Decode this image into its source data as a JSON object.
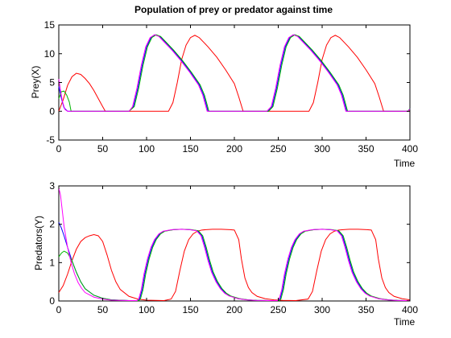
{
  "chart_data": [
    {
      "type": "line",
      "title": "Population of prey or predator against time",
      "xlabel": "Time",
      "ylabel": "Prey(X)",
      "xlim": [
        0,
        400
      ],
      "ylim": [
        -5,
        15
      ],
      "xticks": [
        0,
        50,
        100,
        150,
        200,
        250,
        300,
        350,
        400
      ],
      "yticks": [
        -5,
        0,
        5,
        10,
        15
      ],
      "grid": false,
      "series": [
        {
          "color": "#ff0000",
          "x": [
            0,
            5,
            10,
            15,
            20,
            25,
            30,
            35,
            40,
            45,
            50,
            53,
            60,
            100,
            125,
            130,
            135,
            140,
            145,
            150,
            155,
            160,
            170,
            180,
            190,
            200,
            205,
            210,
            220,
            270,
            285,
            290,
            295,
            300,
            305,
            310,
            315,
            320,
            330,
            340,
            350,
            360,
            365,
            370,
            400
          ],
          "y": [
            0,
            2,
            4.5,
            6,
            6.6,
            6.4,
            5.7,
            4.8,
            3.6,
            2.2,
            0.8,
            0,
            0,
            0,
            0,
            1.5,
            5,
            9,
            11.5,
            12.8,
            13.2,
            12.8,
            11.2,
            9.4,
            7.2,
            4.8,
            2.5,
            0,
            0,
            0,
            0,
            1.5,
            5,
            9,
            11.5,
            12.8,
            13.2,
            12.8,
            11.2,
            9.4,
            7.2,
            4.8,
            2.5,
            0,
            0
          ]
        },
        {
          "color": "#0000ff",
          "x": [
            0,
            3,
            6,
            10,
            30,
            80,
            85,
            90,
            95,
            100,
            105,
            110,
            115,
            120,
            130,
            140,
            150,
            160,
            165,
            170,
            238,
            243,
            248,
            253,
            258,
            263,
            268,
            273,
            278,
            288,
            298,
            308,
            318,
            323,
            328,
            398,
            400
          ],
          "y": [
            4.3,
            2.2,
            0.6,
            0,
            0,
            0,
            0.8,
            4,
            8,
            11.2,
            12.8,
            13.3,
            13,
            12.2,
            10.6,
            8.8,
            6.8,
            4.6,
            2.8,
            0,
            0,
            0.8,
            4,
            8,
            11.2,
            12.8,
            13.3,
            13,
            12.2,
            10.6,
            8.8,
            6.8,
            4.6,
            2.8,
            0,
            0,
            0.5
          ]
        },
        {
          "color": "#00b400",
          "x": [
            0,
            3,
            6,
            9,
            12,
            14,
            20,
            80,
            86,
            91,
            96,
            101,
            106,
            111,
            116,
            121,
            131,
            141,
            151,
            161,
            166,
            171,
            239,
            244,
            249,
            254,
            259,
            264,
            269,
            274,
            279,
            289,
            299,
            309,
            319,
            324,
            329,
            398,
            400
          ],
          "y": [
            2.2,
            3.4,
            3.5,
            2.8,
            1.6,
            0,
            0,
            0,
            0.8,
            4,
            8,
            11.2,
            12.8,
            13.3,
            13,
            12.2,
            10.6,
            8.8,
            6.8,
            4.6,
            2.8,
            0,
            0,
            0.8,
            4,
            8,
            11.2,
            12.8,
            13.3,
            13,
            12.2,
            10.6,
            8.8,
            6.8,
            4.6,
            2.8,
            0,
            0,
            0.5
          ]
        },
        {
          "color": "#ff00ff",
          "x": [
            0,
            2,
            4,
            7,
            10,
            30,
            80,
            84,
            89,
            94,
            99,
            104,
            109,
            114,
            119,
            129,
            139,
            149,
            159,
            164,
            169,
            237,
            242,
            247,
            252,
            257,
            262,
            267,
            272,
            277,
            287,
            297,
            307,
            317,
            322,
            327,
            398,
            400
          ],
          "y": [
            5.6,
            3.6,
            1.8,
            0.3,
            0,
            0,
            0,
            0.8,
            4,
            8,
            11.2,
            12.8,
            13.3,
            13,
            12.2,
            10.6,
            8.8,
            6.8,
            4.6,
            2.8,
            0,
            0,
            0.8,
            4,
            8,
            11.2,
            12.8,
            13.3,
            13,
            12.2,
            10.6,
            8.8,
            6.8,
            4.6,
            2.8,
            0,
            0,
            0.4
          ]
        }
      ]
    },
    {
      "type": "line",
      "title": "",
      "xlabel": "Time",
      "ylabel": "Predators(Y)",
      "xlim": [
        0,
        400
      ],
      "ylim": [
        0,
        3
      ],
      "xticks": [
        0,
        50,
        100,
        150,
        200,
        250,
        300,
        350,
        400
      ],
      "yticks": [
        0,
        1,
        2,
        3
      ],
      "grid": false,
      "series": [
        {
          "color": "#ff0000",
          "x": [
            0,
            5,
            10,
            15,
            20,
            25,
            30,
            35,
            40,
            45,
            50,
            55,
            60,
            65,
            70,
            80,
            90,
            100,
            120,
            128,
            133,
            138,
            143,
            148,
            153,
            158,
            163,
            168,
            175,
            185,
            195,
            200,
            205,
            208,
            212,
            216,
            220,
            226,
            235,
            245,
            255,
            270,
            284,
            289,
            294,
            299,
            304,
            309,
            314,
            319,
            324,
            331,
            341,
            351,
            356,
            361,
            364,
            368,
            372,
            376,
            382,
            391,
            400
          ],
          "y": [
            0.22,
            0.4,
            0.7,
            1.05,
            1.35,
            1.55,
            1.65,
            1.7,
            1.73,
            1.7,
            1.55,
            1.2,
            0.8,
            0.5,
            0.3,
            0.12,
            0.05,
            0.02,
            0.01,
            0.05,
            0.25,
            0.8,
            1.3,
            1.6,
            1.75,
            1.82,
            1.85,
            1.86,
            1.87,
            1.87,
            1.86,
            1.85,
            1.6,
            1.1,
            0.6,
            0.35,
            0.22,
            0.12,
            0.06,
            0.03,
            0.015,
            0.01,
            0.05,
            0.25,
            0.8,
            1.3,
            1.6,
            1.75,
            1.82,
            1.85,
            1.86,
            1.87,
            1.87,
            1.86,
            1.85,
            1.6,
            1.1,
            0.6,
            0.35,
            0.22,
            0.12,
            0.06,
            0.03
          ]
        },
        {
          "color": "#0000ff",
          "x": [
            0,
            3,
            6,
            10,
            15,
            20,
            25,
            30,
            40,
            50,
            60,
            80,
            90,
            92,
            95,
            98,
            102,
            106,
            110,
            115,
            120,
            130,
            140,
            150,
            158,
            163,
            167,
            171,
            175,
            180,
            185,
            190,
            195,
            205,
            215,
            225,
            240,
            250,
            252,
            255,
            258,
            262,
            266,
            270,
            275,
            280,
            290,
            300,
            310,
            318,
            323,
            327,
            331,
            335,
            340,
            345,
            350,
            355,
            365,
            375,
            385,
            395,
            400
          ],
          "y": [
            2.05,
            1.9,
            1.7,
            1.4,
            1.05,
            0.75,
            0.5,
            0.32,
            0.15,
            0.07,
            0.03,
            0.01,
            0.01,
            0.05,
            0.3,
            0.7,
            1.1,
            1.4,
            1.6,
            1.75,
            1.82,
            1.86,
            1.87,
            1.86,
            1.83,
            1.7,
            1.4,
            1.05,
            0.75,
            0.5,
            0.32,
            0.2,
            0.13,
            0.06,
            0.03,
            0.015,
            0.01,
            0.01,
            0.05,
            0.3,
            0.7,
            1.1,
            1.4,
            1.6,
            1.75,
            1.82,
            1.86,
            1.87,
            1.86,
            1.83,
            1.7,
            1.4,
            1.05,
            0.75,
            0.5,
            0.32,
            0.2,
            0.13,
            0.06,
            0.03,
            0.015,
            0.01,
            0.01
          ]
        },
        {
          "color": "#00b400",
          "x": [
            0,
            3,
            6,
            10,
            15,
            20,
            25,
            30,
            40,
            50,
            60,
            80,
            91,
            93,
            96,
            99,
            103,
            107,
            111,
            116,
            121,
            131,
            141,
            151,
            159,
            164,
            168,
            172,
            176,
            181,
            186,
            191,
            196,
            206,
            216,
            226,
            240,
            251,
            253,
            256,
            259,
            263,
            267,
            271,
            276,
            281,
            291,
            301,
            311,
            319,
            324,
            328,
            332,
            336,
            341,
            346,
            351,
            356,
            366,
            376,
            386,
            396,
            400
          ],
          "y": [
            1.15,
            1.25,
            1.3,
            1.25,
            1.05,
            0.75,
            0.5,
            0.32,
            0.15,
            0.07,
            0.03,
            0.01,
            0.01,
            0.05,
            0.3,
            0.7,
            1.1,
            1.4,
            1.6,
            1.75,
            1.82,
            1.86,
            1.87,
            1.86,
            1.83,
            1.7,
            1.4,
            1.05,
            0.75,
            0.5,
            0.32,
            0.2,
            0.13,
            0.06,
            0.03,
            0.015,
            0.01,
            0.01,
            0.05,
            0.3,
            0.7,
            1.1,
            1.4,
            1.6,
            1.75,
            1.82,
            1.86,
            1.87,
            1.86,
            1.83,
            1.7,
            1.4,
            1.05,
            0.75,
            0.5,
            0.32,
            0.2,
            0.13,
            0.06,
            0.03,
            0.015,
            0.01,
            0.01
          ]
        },
        {
          "color": "#ff00ff",
          "x": [
            0,
            2,
            4,
            6,
            10,
            14,
            18,
            22,
            26,
            30,
            40,
            50,
            60,
            80,
            89,
            91,
            94,
            97,
            101,
            105,
            109,
            114,
            119,
            129,
            139,
            149,
            157,
            162,
            166,
            170,
            174,
            179,
            184,
            189,
            194,
            204,
            214,
            224,
            240,
            249,
            251,
            254,
            257,
            261,
            265,
            269,
            274,
            279,
            289,
            299,
            309,
            317,
            322,
            326,
            330,
            334,
            339,
            344,
            349,
            354,
            364,
            374,
            384,
            394,
            400
          ],
          "y": [
            2.95,
            2.75,
            2.35,
            1.95,
            1.4,
            1.0,
            0.7,
            0.48,
            0.33,
            0.22,
            0.1,
            0.05,
            0.02,
            0.01,
            0.01,
            0.05,
            0.3,
            0.7,
            1.1,
            1.4,
            1.6,
            1.75,
            1.82,
            1.86,
            1.87,
            1.86,
            1.83,
            1.7,
            1.4,
            1.05,
            0.75,
            0.5,
            0.32,
            0.2,
            0.13,
            0.06,
            0.03,
            0.015,
            0.01,
            0.01,
            0.05,
            0.3,
            0.7,
            1.1,
            1.4,
            1.6,
            1.75,
            1.82,
            1.86,
            1.87,
            1.86,
            1.83,
            1.7,
            1.4,
            1.05,
            0.75,
            0.5,
            0.32,
            0.2,
            0.13,
            0.06,
            0.03,
            0.015,
            0.01,
            0.01
          ]
        }
      ]
    }
  ]
}
